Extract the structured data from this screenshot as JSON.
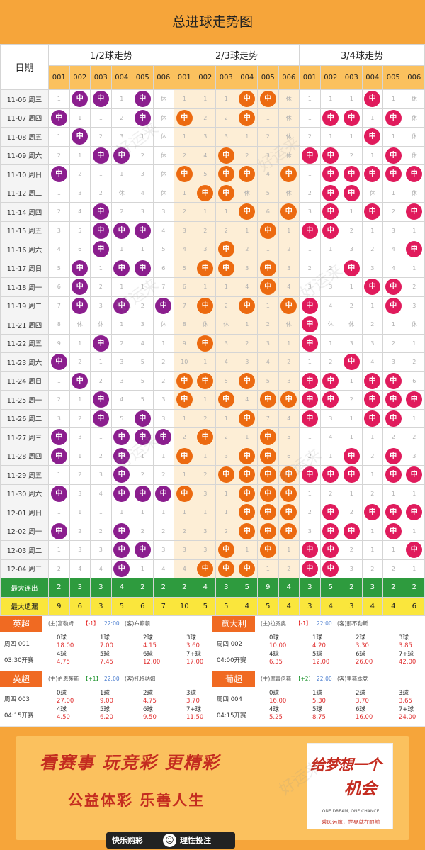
{
  "title": "总进球走势图",
  "header": {
    "date_label": "日期",
    "groups": [
      "1/2球走势",
      "2/3球走势",
      "3/4球走势"
    ],
    "subcols": [
      "001",
      "002",
      "003",
      "004",
      "005",
      "006"
    ]
  },
  "hit_label": "中",
  "colors": {
    "group1": "#8b1e8e",
    "group2": "#ec6a10",
    "group3": "#e01b5c",
    "title_bar": "#f6a53a",
    "max_streak_bg": "#2e9b3e",
    "max_miss_bg": "#fae63c"
  },
  "rows": [
    {
      "date": "11-06 周三",
      "g": [
        [
          1,
          "中",
          "中",
          1,
          "中",
          "休"
        ],
        [
          1,
          1,
          1,
          "中",
          "中",
          "休"
        ],
        [
          1,
          1,
          1,
          "中",
          1,
          "休"
        ]
      ]
    },
    {
      "date": "11-07 周四",
      "g": [
        [
          "中",
          1,
          1,
          2,
          "中",
          "休"
        ],
        [
          "中",
          2,
          2,
          "中",
          1,
          "休"
        ],
        [
          1,
          "中",
          "中",
          1,
          "中",
          "休"
        ]
      ]
    },
    {
      "date": "11-08 周五",
      "g": [
        [
          1,
          "中",
          2,
          3,
          1,
          "休"
        ],
        [
          1,
          3,
          3,
          1,
          2,
          "休"
        ],
        [
          2,
          1,
          1,
          "中",
          1,
          "休"
        ]
      ]
    },
    {
      "date": "11-09 周六",
      "g": [
        [
          2,
          1,
          "中",
          "中",
          2,
          "休"
        ],
        [
          2,
          4,
          "中",
          2,
          3,
          "休"
        ],
        [
          "中",
          "中",
          2,
          1,
          "中",
          "休"
        ]
      ]
    },
    {
      "date": "11-10 周日",
      "g": [
        [
          "中",
          2,
          1,
          1,
          3,
          "休"
        ],
        [
          "中",
          5,
          "中",
          "中",
          4,
          "中"
        ],
        [
          1,
          "中",
          "中",
          "中",
          "中",
          "中"
        ]
      ]
    },
    {
      "date": "11-12 周二",
      "g": [
        [
          1,
          3,
          2,
          "休",
          4,
          "休"
        ],
        [
          1,
          "中",
          "中",
          "休",
          5,
          "休"
        ],
        [
          2,
          "中",
          "中",
          "休",
          1,
          "休"
        ]
      ]
    },
    {
      "date": "11-14 周四",
      "g": [
        [
          2,
          4,
          "中",
          2,
          3,
          3
        ],
        [
          2,
          1,
          1,
          "中",
          6,
          "中"
        ],
        [
          3,
          "中",
          1,
          "中",
          2,
          "中"
        ]
      ]
    },
    {
      "date": "11-15 周五",
      "g": [
        [
          3,
          5,
          "中",
          "中",
          "中",
          4
        ],
        [
          3,
          2,
          2,
          1,
          "中",
          1
        ],
        [
          "中",
          "中",
          2,
          1,
          3,
          1
        ]
      ]
    },
    {
      "date": "11-16 周六",
      "g": [
        [
          4,
          6,
          "中",
          1,
          1,
          5
        ],
        [
          4,
          3,
          "中",
          2,
          1,
          2
        ],
        [
          1,
          1,
          3,
          2,
          4,
          "中"
        ]
      ]
    },
    {
      "date": "11-17 周日",
      "g": [
        [
          5,
          "中",
          1,
          "中",
          "中",
          6
        ],
        [
          5,
          "中",
          "中",
          3,
          "中",
          3
        ],
        [
          2,
          2,
          "中",
          3,
          4,
          1
        ]
      ]
    },
    {
      "date": "11-18 周一",
      "g": [
        [
          6,
          "中",
          2,
          1,
          1,
          7
        ],
        [
          6,
          1,
          1,
          4,
          "中",
          4
        ],
        [
          3,
          3,
          1,
          "中",
          "中",
          2
        ]
      ]
    },
    {
      "date": "11-19 周二",
      "g": [
        [
          7,
          "中",
          3,
          "中",
          2,
          "中"
        ],
        [
          7,
          "中",
          2,
          "中",
          1,
          "中"
        ],
        [
          "中",
          4,
          2,
          1,
          "中",
          3
        ]
      ]
    },
    {
      "date": "11-21 周四",
      "g": [
        [
          8,
          "休",
          "休",
          1,
          3,
          "休"
        ],
        [
          8,
          "休",
          "休",
          1,
          2,
          "休"
        ],
        [
          "中",
          "休",
          "休",
          2,
          1,
          "休"
        ]
      ]
    },
    {
      "date": "11-22 周五",
      "g": [
        [
          9,
          1,
          "中",
          2,
          4,
          1
        ],
        [
          9,
          "中",
          3,
          2,
          3,
          1
        ],
        [
          "中",
          1,
          3,
          3,
          2,
          1
        ]
      ]
    },
    {
      "date": "11-23 周六",
      "g": [
        [
          "中",
          2,
          1,
          3,
          5,
          2
        ],
        [
          10,
          1,
          4,
          3,
          4,
          2
        ],
        [
          1,
          2,
          "中",
          4,
          3,
          2
        ]
      ]
    },
    {
      "date": "11-24 周日",
      "g": [
        [
          1,
          "中",
          2,
          3,
          5,
          2
        ],
        [
          "中",
          "中",
          5,
          "中",
          5,
          3
        ],
        [
          "中",
          "中",
          1,
          "中",
          "中",
          6
        ]
      ]
    },
    {
      "date": "11-25 周一",
      "g": [
        [
          2,
          1,
          "中",
          4,
          5,
          3
        ],
        [
          "中",
          1,
          "中",
          4,
          "中",
          "中"
        ],
        [
          "中",
          "中",
          2,
          "中",
          "中",
          "中"
        ]
      ]
    },
    {
      "date": "11-26 周二",
      "g": [
        [
          3,
          2,
          "中",
          5,
          "中",
          3
        ],
        [
          1,
          2,
          1,
          "中",
          7,
          4
        ],
        [
          "中",
          3,
          1,
          "中",
          "中",
          1
        ]
      ]
    },
    {
      "date": "11-27 周三",
      "g": [
        [
          "中",
          3,
          1,
          "中",
          "中",
          "中"
        ],
        [
          2,
          "中",
          2,
          1,
          "中",
          5
        ],
        [
          1,
          4,
          1,
          1,
          2,
          2
        ]
      ]
    },
    {
      "date": "11-28 周四",
      "g": [
        [
          "中",
          1,
          2,
          "中",
          1,
          1
        ],
        [
          "中",
          1,
          3,
          "中",
          "中",
          6
        ],
        [
          2,
          1,
          "中",
          2,
          "中",
          3
        ]
      ]
    },
    {
      "date": "11-29 周五",
      "g": [
        [
          1,
          2,
          3,
          "中",
          2,
          2
        ],
        [
          1,
          2,
          "中",
          "中",
          "中",
          "中"
        ],
        [
          "中",
          "中",
          "中",
          1,
          "中",
          "中"
        ]
      ]
    },
    {
      "date": "11-30 周六",
      "g": [
        [
          "中",
          3,
          4,
          "中",
          "中",
          "中"
        ],
        [
          "中",
          3,
          1,
          "中",
          "中",
          "中"
        ],
        [
          1,
          2,
          1,
          2,
          1,
          1
        ]
      ]
    },
    {
      "date": "12-01 周日",
      "g": [
        [
          1,
          1,
          1,
          1,
          1,
          1
        ],
        [
          1,
          1,
          1,
          "中",
          "中",
          "中"
        ],
        [
          2,
          "中",
          2,
          "中",
          "中",
          "中"
        ]
      ]
    },
    {
      "date": "12-02 周一",
      "g": [
        [
          "中",
          2,
          2,
          "中",
          2,
          2
        ],
        [
          2,
          3,
          2,
          "中",
          "中",
          "中"
        ],
        [
          3,
          "中",
          "中",
          1,
          "中",
          1
        ]
      ]
    },
    {
      "date": "12-03 周二",
      "g": [
        [
          1,
          3,
          3,
          "中",
          "中",
          3
        ],
        [
          3,
          3,
          "中",
          1,
          "中",
          1
        ],
        [
          "中",
          "中",
          2,
          1,
          1,
          "中"
        ]
      ]
    },
    {
      "date": "12-04 周三",
      "g": [
        [
          2,
          4,
          4,
          "中",
          1,
          4
        ],
        [
          4,
          "中",
          "中",
          "中",
          1,
          2
        ],
        [
          "中",
          "中",
          3,
          2,
          2,
          1
        ]
      ]
    }
  ],
  "stats": {
    "max_streak_label": "最大连出",
    "max_streak": [
      2,
      3,
      3,
      4,
      2,
      2,
      2,
      4,
      3,
      5,
      9,
      4,
      3,
      5,
      2,
      3,
      2,
      2
    ],
    "max_miss_label": "最大遗漏",
    "max_miss": [
      9,
      6,
      3,
      5,
      6,
      7,
      10,
      5,
      5,
      4,
      5,
      4,
      3,
      4,
      3,
      4,
      4,
      6
    ]
  },
  "matches": [
    {
      "league": "英超",
      "home": "(主)富勒姆",
      "handicap": "【-1】",
      "time": "22:00",
      "away": "(客)布赖顿",
      "code": "周四 001",
      "kickoff": "03:30开赛",
      "odds": [
        [
          "0球",
          "18.00"
        ],
        [
          "1球",
          "7.00"
        ],
        [
          "2球",
          "4.15"
        ],
        [
          "3球",
          "3.60"
        ],
        [
          "4球",
          "4.75"
        ],
        [
          "5球",
          "7.45"
        ],
        [
          "6球",
          "12.00"
        ],
        [
          "7+球",
          "17.00"
        ]
      ]
    },
    {
      "league": "意大利",
      "home": "(主)拉齐奥",
      "handicap": "【-1】",
      "time": "22:00",
      "away": "(客)那不勒斯",
      "code": "周四 002",
      "kickoff": "04:00开赛",
      "odds": [
        [
          "0球",
          "10.00"
        ],
        [
          "1球",
          "4.20"
        ],
        [
          "2球",
          "3.30"
        ],
        [
          "3球",
          "3.85"
        ],
        [
          "4球",
          "6.35"
        ],
        [
          "5球",
          "12.00"
        ],
        [
          "6球",
          "26.00"
        ],
        [
          "7+球",
          "42.00"
        ]
      ]
    },
    {
      "league": "英超",
      "home": "(主)伯恩茅斯",
      "handicap": "【+1】",
      "time": "22:00",
      "away": "(客)托特纳姆",
      "code": "周四 003",
      "kickoff": "04:15开赛",
      "odds": [
        [
          "0球",
          "27.00"
        ],
        [
          "1球",
          "9.00"
        ],
        [
          "2球",
          "4.75"
        ],
        [
          "3球",
          "3.70"
        ],
        [
          "4球",
          "4.50"
        ],
        [
          "5球",
          "6.20"
        ],
        [
          "6球",
          "9.50"
        ],
        [
          "7+球",
          "11.50"
        ]
      ]
    },
    {
      "league": "葡超",
      "home": "(主)摩雷伦斯",
      "handicap": "【+2】",
      "time": "22:00",
      "away": "(客)里斯本竞",
      "code": "周四 004",
      "kickoff": "04:15开赛",
      "odds": [
        [
          "0球",
          "16.00"
        ],
        [
          "1球",
          "5.30"
        ],
        [
          "2球",
          "3.70"
        ],
        [
          "3球",
          "3.65"
        ],
        [
          "4球",
          "5.25"
        ],
        [
          "5球",
          "8.75"
        ],
        [
          "6球",
          "16.00"
        ],
        [
          "7+球",
          "24.00"
        ]
      ]
    }
  ],
  "watermark": "好运来",
  "promo": {
    "slogan1": "看赛事 玩竞彩 更精彩",
    "slogan2": "公益体彩 乐善人生",
    "bar_left": "快乐购彩",
    "bar_right": "理性投注",
    "badge_line1": "给梦想一个",
    "badge_line2": "机会",
    "badge_en": "ONE DREAM, ONE CHANCE",
    "badge_sub": "乘风远航，世界就在眼前"
  }
}
